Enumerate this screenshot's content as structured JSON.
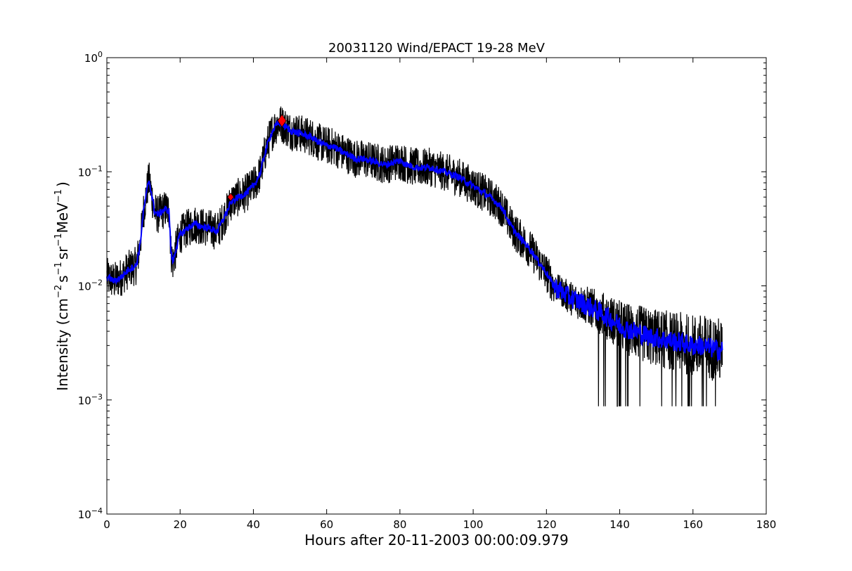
{
  "chart_data": {
    "type": "line",
    "title": "20031120 Wind/EPACT 19-28 MeV",
    "xlabel": "Hours after 20-11-2003 00:00:09.979",
    "ylabel": {
      "prefix": "Intensity (cm",
      "exp1": "−2",
      "s": "s",
      "exp2": "−1",
      "sr": "sr",
      "exp3": "−1",
      "mev": "MeV",
      "exp4": "−1",
      "suffix": ")"
    },
    "xlim": [
      0,
      180
    ],
    "ylim": [
      0.0001,
      1
    ],
    "yscale": "log",
    "grid": false,
    "x_ticks": [
      0,
      20,
      40,
      60,
      80,
      100,
      120,
      140,
      160,
      180
    ],
    "y_ticks": [
      {
        "value": 0.0001,
        "base": "10",
        "exp": "−4"
      },
      {
        "value": 0.001,
        "base": "10",
        "exp": "−3"
      },
      {
        "value": 0.01,
        "base": "10",
        "exp": "−2"
      },
      {
        "value": 0.1,
        "base": "10",
        "exp": "−1"
      },
      {
        "value": 1,
        "base": "10",
        "exp": "0"
      }
    ],
    "series": [
      {
        "color": "#000000",
        "style": "raw",
        "x": [
          0,
          2,
          4,
          6,
          8,
          9,
          10,
          11,
          11.5,
          12,
          13,
          14,
          15,
          16,
          17,
          17.5,
          18,
          19,
          20,
          22,
          24,
          26,
          28,
          30,
          31,
          32,
          33,
          34,
          36,
          38,
          40,
          41,
          42,
          43,
          44,
          45,
          46,
          47,
          48,
          50,
          52,
          54,
          56,
          58,
          60,
          62,
          64,
          66,
          68,
          70,
          72,
          74,
          76,
          78,
          80,
          82,
          84,
          86,
          88,
          90,
          92,
          94,
          96,
          98,
          100,
          102,
          104,
          106,
          108,
          110,
          112,
          114,
          116,
          118,
          120,
          122,
          124,
          126,
          128,
          130,
          132,
          134,
          136,
          138,
          140,
          142,
          144,
          146,
          148,
          150,
          152,
          154,
          156,
          158,
          160,
          162,
          164,
          166,
          168
        ],
        "y": [
          0.012,
          0.011,
          0.012,
          0.014,
          0.015,
          0.022,
          0.045,
          0.07,
          0.085,
          0.07,
          0.045,
          0.042,
          0.045,
          0.047,
          0.045,
          0.02,
          0.016,
          0.022,
          0.028,
          0.032,
          0.035,
          0.033,
          0.032,
          0.03,
          0.034,
          0.04,
          0.046,
          0.055,
          0.06,
          0.065,
          0.075,
          0.085,
          0.1,
          0.14,
          0.18,
          0.22,
          0.25,
          0.27,
          0.26,
          0.23,
          0.22,
          0.21,
          0.2,
          0.18,
          0.17,
          0.165,
          0.15,
          0.14,
          0.13,
          0.13,
          0.125,
          0.12,
          0.115,
          0.12,
          0.125,
          0.115,
          0.11,
          0.108,
          0.11,
          0.105,
          0.1,
          0.095,
          0.09,
          0.082,
          0.075,
          0.068,
          0.062,
          0.055,
          0.048,
          0.035,
          0.028,
          0.024,
          0.02,
          0.016,
          0.013,
          0.01,
          0.009,
          0.008,
          0.0075,
          0.007,
          0.0065,
          0.006,
          0.0055,
          0.005,
          0.0045,
          0.0042,
          0.004,
          0.0038,
          0.0036,
          0.0035,
          0.0034,
          0.0033,
          0.0032,
          0.0031,
          0.003,
          0.003,
          0.0029,
          0.0028,
          0.0027
        ]
      },
      {
        "color": "#0000ff",
        "style": "smoothed",
        "x": [
          0,
          2,
          4,
          6,
          8,
          9,
          10,
          11,
          11.5,
          12,
          13,
          14,
          15,
          16,
          17,
          17.5,
          18,
          19,
          20,
          22,
          24,
          26,
          28,
          30,
          31,
          32,
          33,
          34,
          36,
          38,
          40,
          41,
          42,
          43,
          44,
          45,
          46,
          47,
          48,
          50,
          52,
          54,
          56,
          58,
          60,
          62,
          64,
          66,
          68,
          70,
          72,
          74,
          76,
          78,
          80,
          82,
          84,
          86,
          88,
          90,
          92,
          94,
          96,
          98,
          100,
          102,
          104,
          106,
          108,
          110,
          112,
          114,
          116,
          118,
          120,
          122,
          124,
          126,
          128,
          130,
          132,
          134,
          136,
          138,
          140,
          142,
          144,
          146,
          148,
          150,
          152,
          154,
          156,
          158,
          160,
          162,
          164,
          166,
          168
        ],
        "y": [
          0.012,
          0.011,
          0.012,
          0.014,
          0.015,
          0.022,
          0.045,
          0.07,
          0.085,
          0.07,
          0.045,
          0.042,
          0.045,
          0.047,
          0.045,
          0.02,
          0.016,
          0.022,
          0.028,
          0.032,
          0.035,
          0.033,
          0.032,
          0.03,
          0.034,
          0.04,
          0.046,
          0.055,
          0.06,
          0.065,
          0.075,
          0.085,
          0.1,
          0.14,
          0.18,
          0.22,
          0.25,
          0.27,
          0.26,
          0.23,
          0.22,
          0.21,
          0.2,
          0.18,
          0.17,
          0.165,
          0.15,
          0.14,
          0.13,
          0.13,
          0.125,
          0.12,
          0.115,
          0.12,
          0.125,
          0.115,
          0.11,
          0.108,
          0.11,
          0.105,
          0.1,
          0.095,
          0.09,
          0.082,
          0.075,
          0.068,
          0.062,
          0.055,
          0.048,
          0.035,
          0.028,
          0.024,
          0.02,
          0.016,
          0.013,
          0.01,
          0.009,
          0.008,
          0.0075,
          0.007,
          0.0065,
          0.006,
          0.0055,
          0.005,
          0.0045,
          0.0042,
          0.004,
          0.0038,
          0.0036,
          0.0035,
          0.0034,
          0.0033,
          0.0032,
          0.0031,
          0.003,
          0.003,
          0.0029,
          0.0028,
          0.0027
        ]
      }
    ],
    "markers": [
      {
        "x": 33.8,
        "y": 0.06,
        "color": "#ff0000",
        "shape": "diamond",
        "size": "small"
      },
      {
        "x": 47.8,
        "y": 0.28,
        "color": "#ff0000",
        "shape": "diamond",
        "size": "large"
      }
    ]
  }
}
